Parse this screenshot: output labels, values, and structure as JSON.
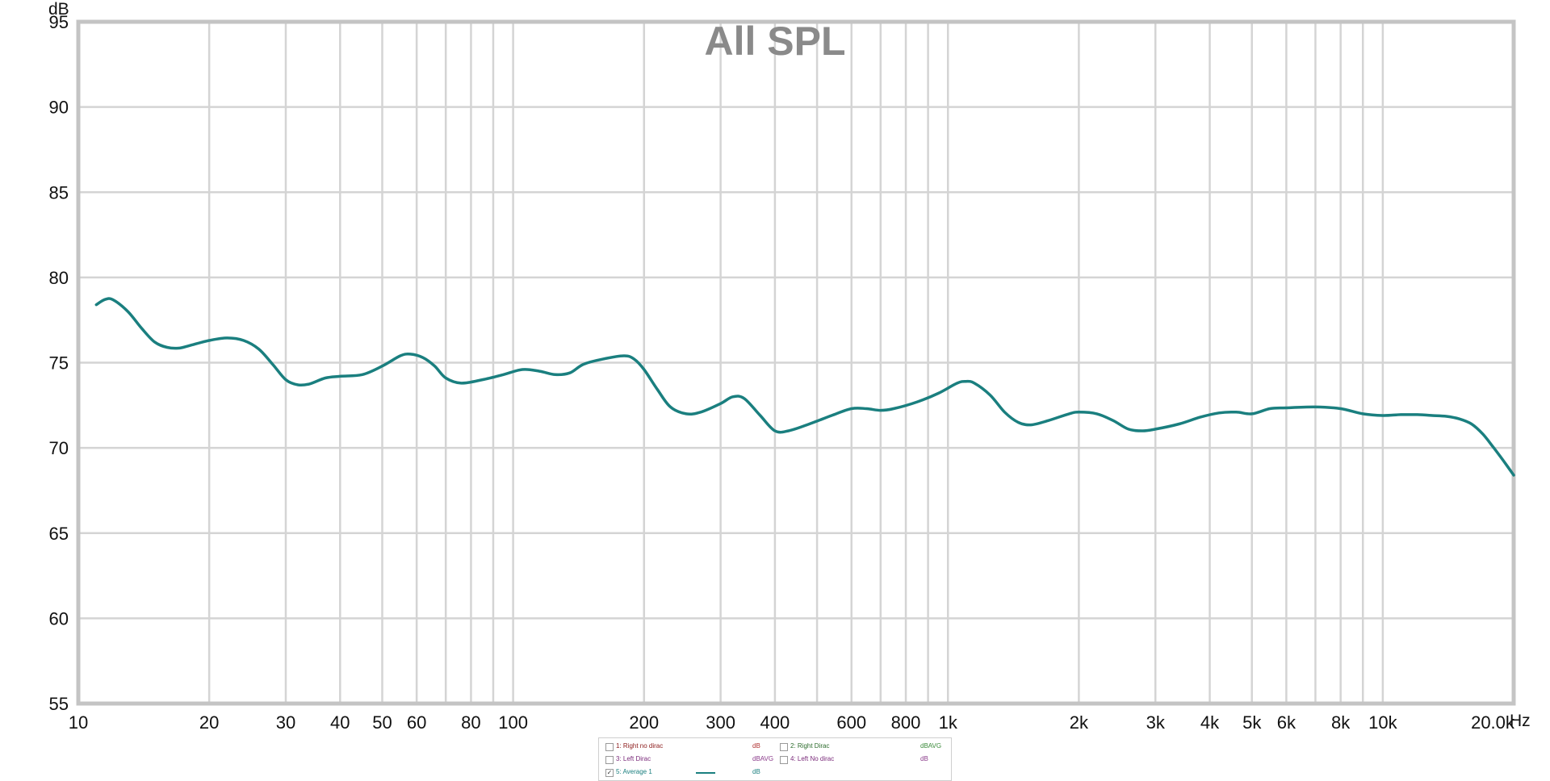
{
  "chart_data": {
    "type": "line",
    "title": "All SPL",
    "ylabel": "dB",
    "xlabel": "Hz",
    "x_scale": "log",
    "xlim": [
      10,
      20000
    ],
    "ylim": [
      55,
      95
    ],
    "grid": true,
    "y_ticks": [
      55,
      60,
      65,
      70,
      75,
      80,
      85,
      90,
      95
    ],
    "x_ticks": [
      {
        "value": 10,
        "label": "10"
      },
      {
        "value": 20,
        "label": "20"
      },
      {
        "value": 30,
        "label": "30"
      },
      {
        "value": 40,
        "label": "40"
      },
      {
        "value": 50,
        "label": "50"
      },
      {
        "value": 60,
        "label": "60"
      },
      {
        "value": 80,
        "label": "80"
      },
      {
        "value": 100,
        "label": "100"
      },
      {
        "value": 200,
        "label": "200"
      },
      {
        "value": 300,
        "label": "300"
      },
      {
        "value": 400,
        "label": "400"
      },
      {
        "value": 600,
        "label": "600"
      },
      {
        "value": 800,
        "label": "800"
      },
      {
        "value": 1000,
        "label": "1k"
      },
      {
        "value": 2000,
        "label": "2k"
      },
      {
        "value": 3000,
        "label": "3k"
      },
      {
        "value": 4000,
        "label": "4k"
      },
      {
        "value": 5000,
        "label": "5k"
      },
      {
        "value": 6000,
        "label": "6k"
      },
      {
        "value": 8000,
        "label": "8k"
      },
      {
        "value": 10000,
        "label": "10k"
      },
      {
        "value": 20000,
        "label": "20.0k"
      }
    ],
    "minor_gridlines": [
      70,
      90,
      500,
      700,
      900,
      7000,
      9000
    ],
    "series": [
      {
        "name": "5: Average 1",
        "color": "#1a7f7f",
        "points": [
          [
            11,
            78.4
          ],
          [
            11.5,
            78.7
          ],
          [
            12,
            78.7
          ],
          [
            13,
            78.0
          ],
          [
            14,
            77.0
          ],
          [
            15,
            76.2
          ],
          [
            16,
            75.9
          ],
          [
            17,
            75.85
          ],
          [
            18,
            76.0
          ],
          [
            20,
            76.3
          ],
          [
            22,
            76.45
          ],
          [
            24,
            76.3
          ],
          [
            26,
            75.8
          ],
          [
            28,
            74.9
          ],
          [
            30,
            74.0
          ],
          [
            32,
            73.7
          ],
          [
            34,
            73.75
          ],
          [
            37,
            74.1
          ],
          [
            40,
            74.2
          ],
          [
            45,
            74.3
          ],
          [
            50,
            74.8
          ],
          [
            55,
            75.4
          ],
          [
            58,
            75.5
          ],
          [
            62,
            75.3
          ],
          [
            66,
            74.8
          ],
          [
            70,
            74.1
          ],
          [
            76,
            73.8
          ],
          [
            85,
            74.0
          ],
          [
            95,
            74.3
          ],
          [
            105,
            74.6
          ],
          [
            115,
            74.5
          ],
          [
            125,
            74.3
          ],
          [
            135,
            74.4
          ],
          [
            145,
            74.9
          ],
          [
            160,
            75.2
          ],
          [
            180,
            75.4
          ],
          [
            190,
            75.2
          ],
          [
            200,
            74.6
          ],
          [
            215,
            73.4
          ],
          [
            230,
            72.4
          ],
          [
            250,
            72.0
          ],
          [
            270,
            72.1
          ],
          [
            300,
            72.6
          ],
          [
            320,
            73.0
          ],
          [
            340,
            72.9
          ],
          [
            370,
            71.9
          ],
          [
            400,
            71.0
          ],
          [
            430,
            71.0
          ],
          [
            480,
            71.4
          ],
          [
            540,
            71.9
          ],
          [
            600,
            72.3
          ],
          [
            650,
            72.3
          ],
          [
            700,
            72.2
          ],
          [
            750,
            72.3
          ],
          [
            850,
            72.7
          ],
          [
            950,
            73.2
          ],
          [
            1050,
            73.8
          ],
          [
            1100,
            73.9
          ],
          [
            1150,
            73.8
          ],
          [
            1250,
            73.1
          ],
          [
            1350,
            72.1
          ],
          [
            1450,
            71.5
          ],
          [
            1550,
            71.35
          ],
          [
            1700,
            71.6
          ],
          [
            1900,
            72.0
          ],
          [
            2000,
            72.1
          ],
          [
            2200,
            72.0
          ],
          [
            2400,
            71.6
          ],
          [
            2600,
            71.1
          ],
          [
            2800,
            71.0
          ],
          [
            3000,
            71.1
          ],
          [
            3400,
            71.4
          ],
          [
            3800,
            71.8
          ],
          [
            4200,
            72.05
          ],
          [
            4600,
            72.1
          ],
          [
            5000,
            72.0
          ],
          [
            5500,
            72.3
          ],
          [
            6000,
            72.35
          ],
          [
            7000,
            72.4
          ],
          [
            8000,
            72.3
          ],
          [
            9000,
            72.0
          ],
          [
            10000,
            71.9
          ],
          [
            11000,
            71.95
          ],
          [
            12000,
            71.95
          ],
          [
            13000,
            71.9
          ],
          [
            14000,
            71.85
          ],
          [
            15000,
            71.7
          ],
          [
            16000,
            71.4
          ],
          [
            17000,
            70.8
          ],
          [
            18000,
            70.0
          ],
          [
            19000,
            69.2
          ],
          [
            20000,
            68.4
          ]
        ]
      }
    ]
  },
  "legend": {
    "items": [
      {
        "label": "1: Right no dirac",
        "unit": "dB",
        "checked": false,
        "color": "#8b1a1a",
        "unit_color": "#b03030"
      },
      {
        "label": "2: Right Dirac",
        "unit": "dBAVG",
        "checked": false,
        "color": "#2a6a2a",
        "unit_color": "#3a8a3a"
      },
      {
        "label": "3: Left Dirac",
        "unit": "dBAVG",
        "checked": false,
        "color": "#7a2a7a",
        "unit_color": "#8a3a8a"
      },
      {
        "label": "4: Left No dirac",
        "unit": "dB",
        "checked": false,
        "color": "#7a2a7a",
        "unit_color": "#8a3a8a"
      },
      {
        "label": "5: Average 1",
        "unit": "dB",
        "checked": true,
        "color": "#1a7f7f",
        "unit_color": "#1a7f7f"
      }
    ],
    "check_glyph": "✓"
  }
}
